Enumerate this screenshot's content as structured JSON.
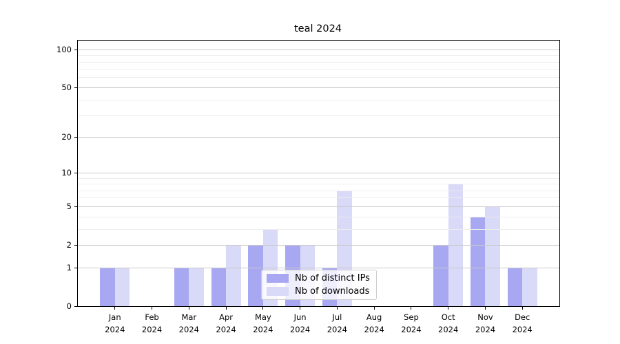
{
  "title": "teal 2024",
  "chart_data": {
    "type": "bar",
    "title": "teal 2024",
    "categories": [
      "Jan 2024",
      "Feb 2024",
      "Mar 2024",
      "Apr 2024",
      "May 2024",
      "Jun 2024",
      "Jul 2024",
      "Aug 2024",
      "Sep 2024",
      "Oct 2024",
      "Nov 2024",
      "Dec 2024"
    ],
    "series": [
      {
        "name": "Nb of distinct IPs",
        "color": "#a8a8f2",
        "values": [
          1,
          0,
          1,
          1,
          2,
          2,
          1,
          0,
          0,
          2,
          4,
          1
        ]
      },
      {
        "name": "Nb of downloads",
        "color": "#d9d9f8",
        "values": [
          1,
          0,
          1,
          2,
          3,
          2,
          7,
          0,
          0,
          8,
          5,
          1
        ]
      }
    ],
    "xlabel": "",
    "ylabel": "",
    "y_axis": {
      "scale": "log10(value+1)",
      "major_ticks": [
        0,
        1,
        2,
        5,
        10,
        20,
        50,
        100
      ],
      "minor_gridlines": [
        3,
        4,
        6,
        7,
        8,
        9,
        30,
        40,
        60,
        70,
        80,
        90
      ],
      "max": 118
    },
    "grid": "horizontal, drawn above bars",
    "legend_position": "lower center, inside plot",
    "colors": {
      "major_grid": "#c9c9c9",
      "minor_grid": "#ededed",
      "spine": "#000000",
      "background": "#ffffff",
      "legend_border": "#cccccc"
    }
  }
}
